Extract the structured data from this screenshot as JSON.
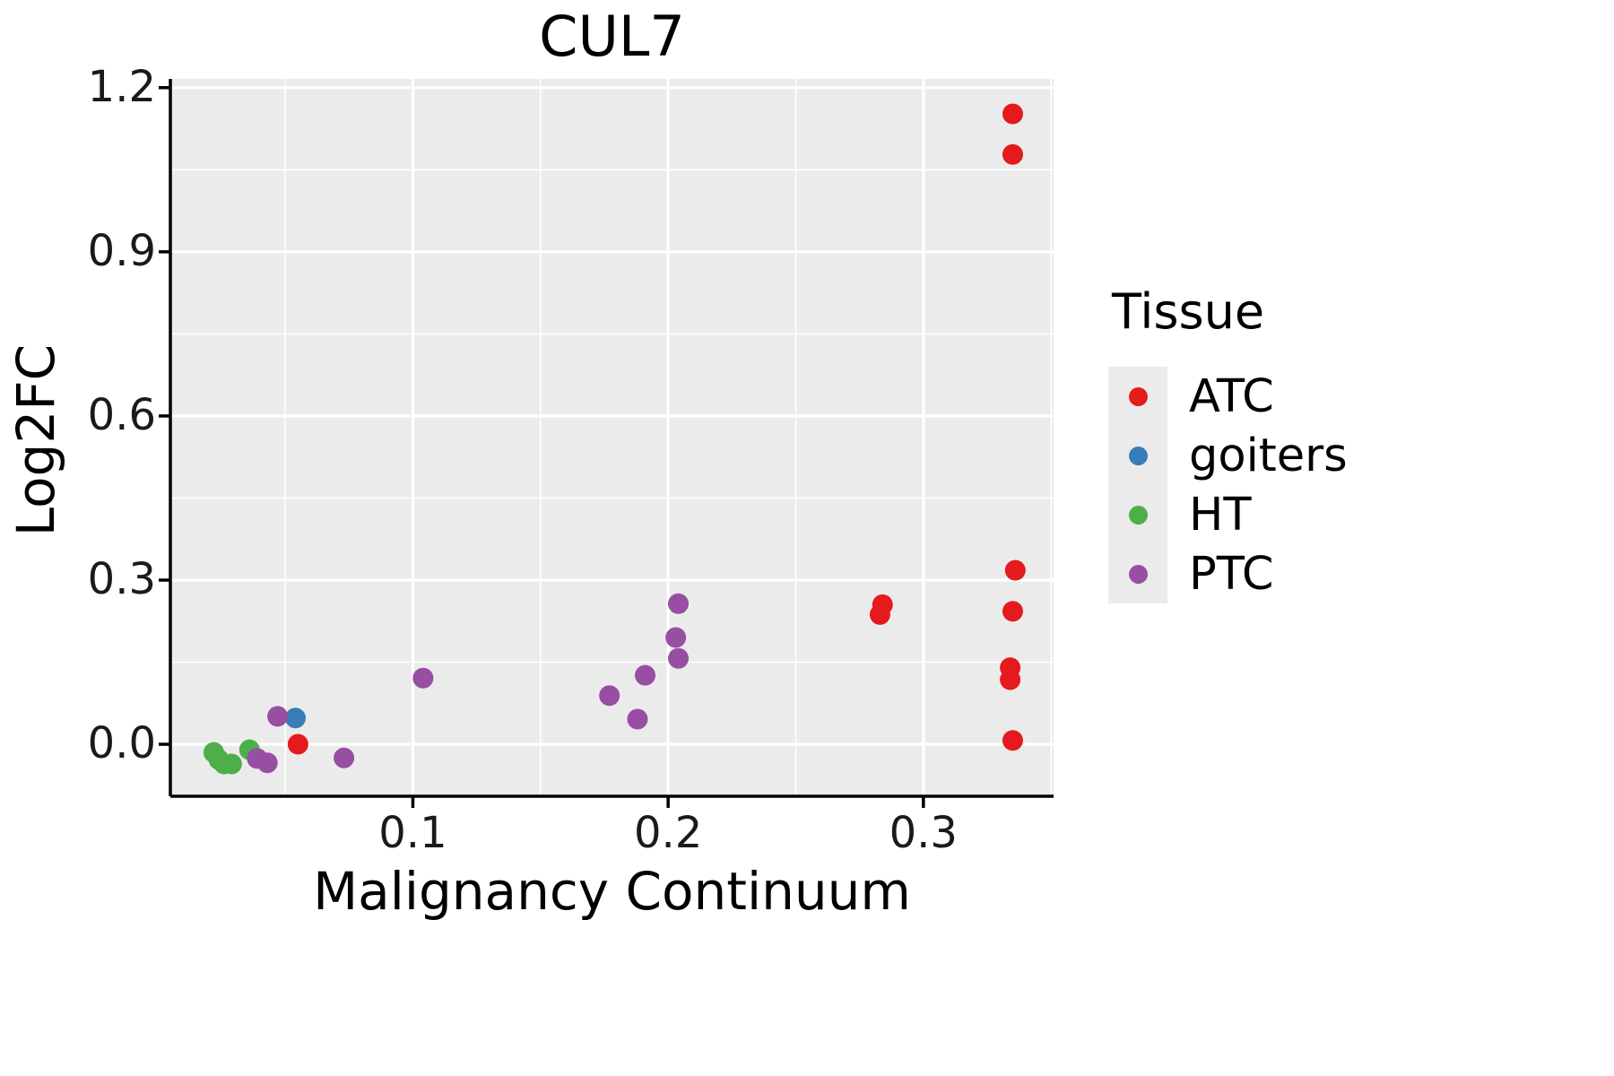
{
  "chart_data": {
    "type": "scatter",
    "title": "CUL7",
    "xlabel": "Malignancy Continuum",
    "ylabel": "Log2FC",
    "legend_title": "Tissue",
    "legend_position": "right",
    "grid": true,
    "panel_bg": "#EBEBEB",
    "grid_color": "#FFFFFF",
    "axis_color": "#000000",
    "xlim": [
      0.005,
      0.351
    ],
    "ylim": [
      -0.095,
      1.216
    ],
    "x_ticks": [
      0.1,
      0.2,
      0.3
    ],
    "x_tick_labels": [
      "0.1",
      "0.2",
      "0.3"
    ],
    "y_ticks": [
      0.0,
      0.3,
      0.6,
      0.9,
      1.2
    ],
    "y_tick_labels": [
      "0.0",
      "0.3",
      "0.6",
      "0.9",
      "1.2"
    ],
    "x_minor_ticks": [
      0.05,
      0.15,
      0.25,
      0.35
    ],
    "y_minor_ticks": [
      0.15,
      0.45,
      0.75,
      1.05
    ],
    "series": [
      {
        "name": "ATC",
        "color": "#E41A1C",
        "points": [
          [
            0.335,
            1.152
          ],
          [
            0.335,
            1.078
          ],
          [
            0.336,
            0.318
          ],
          [
            0.335,
            0.243
          ],
          [
            0.334,
            0.14
          ],
          [
            0.334,
            0.118
          ],
          [
            0.335,
            0.007
          ],
          [
            0.284,
            0.255
          ],
          [
            0.283,
            0.237
          ],
          [
            0.055,
            0.0
          ]
        ]
      },
      {
        "name": "goiters",
        "color": "#377EB8",
        "points": [
          [
            0.054,
            0.048
          ]
        ]
      },
      {
        "name": "HT",
        "color": "#4DAF4A",
        "points": [
          [
            0.022,
            -0.015
          ],
          [
            0.024,
            -0.028
          ],
          [
            0.026,
            -0.036
          ],
          [
            0.029,
            -0.036
          ],
          [
            0.036,
            -0.01
          ]
        ]
      },
      {
        "name": "PTC",
        "color": "#984EA3",
        "points": [
          [
            0.047,
            0.051
          ],
          [
            0.039,
            -0.026
          ],
          [
            0.043,
            -0.034
          ],
          [
            0.073,
            -0.025
          ],
          [
            0.104,
            0.121
          ],
          [
            0.177,
            0.089
          ],
          [
            0.188,
            0.046
          ],
          [
            0.191,
            0.126
          ],
          [
            0.204,
            0.257
          ],
          [
            0.203,
            0.195
          ],
          [
            0.204,
            0.157
          ]
        ]
      }
    ]
  }
}
